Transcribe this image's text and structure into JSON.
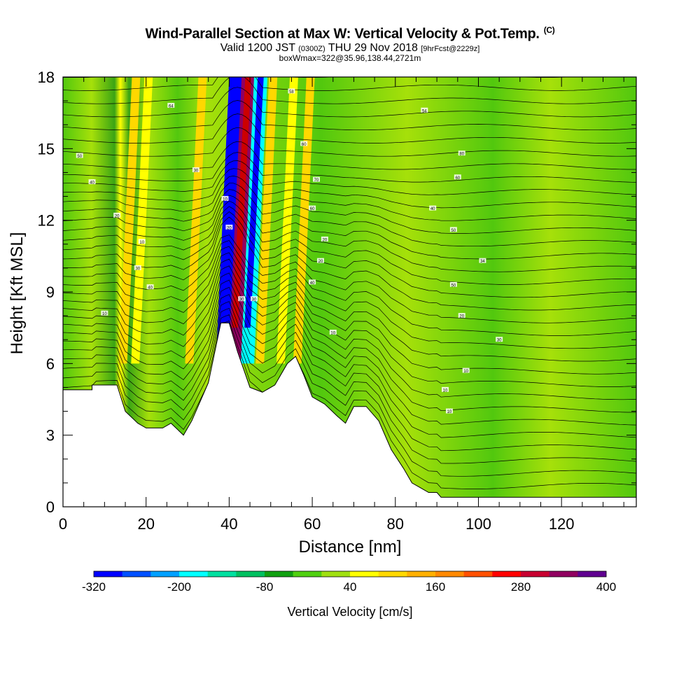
{
  "header": {
    "title": "Wind-Parallel Section at Max W: Vertical Velocity & Pot.Temp.",
    "copyright": "(C)",
    "valid_prefix": "Valid 1200 JST",
    "valid_utc": "(0300Z)",
    "valid_date": "THU 29 Nov 2018",
    "forecast": "[9hrFcst@2229z]",
    "box_info": "boxWmax=322@35.96,138.44,2721m"
  },
  "chart_data": {
    "type": "heatmap",
    "xlabel": "Distance [nm]",
    "ylabel": "Height [Kft MSL]",
    "xlim": [
      0,
      138
    ],
    "ylim": [
      0,
      18
    ],
    "x_ticks": [
      0,
      20,
      40,
      60,
      80,
      100,
      120
    ],
    "y_ticks": [
      0,
      3,
      6,
      9,
      12,
      15,
      18
    ],
    "terrain_kft": [
      [
        0,
        4.9
      ],
      [
        7,
        4.9
      ],
      [
        7,
        5.1
      ],
      [
        13,
        5.1
      ],
      [
        15,
        4.0
      ],
      [
        18,
        3.5
      ],
      [
        20,
        3.3
      ],
      [
        24,
        3.3
      ],
      [
        26,
        3.5
      ],
      [
        29,
        3.0
      ],
      [
        31,
        3.6
      ],
      [
        35,
        5.2
      ],
      [
        38,
        7.7
      ],
      [
        40,
        7.7
      ],
      [
        42,
        6.5
      ],
      [
        45,
        5.0
      ],
      [
        48,
        4.8
      ],
      [
        51,
        5.1
      ],
      [
        54,
        6.0
      ],
      [
        56,
        6.3
      ],
      [
        58,
        5.5
      ],
      [
        60,
        4.6
      ],
      [
        63,
        4.3
      ],
      [
        66,
        3.8
      ],
      [
        68,
        3.5
      ],
      [
        70,
        4.2
      ],
      [
        73,
        4.2
      ],
      [
        76,
        3.6
      ],
      [
        79,
        2.4
      ],
      [
        82,
        1.6
      ],
      [
        84,
        1.0
      ],
      [
        86,
        0.8
      ],
      [
        88,
        0.6
      ],
      [
        90,
        0.6
      ],
      [
        91,
        0.4
      ],
      [
        138,
        0.4
      ]
    ],
    "vertical_velocity_features": [
      {
        "x": 16,
        "w_cms": 60,
        "kind": "updraft"
      },
      {
        "x": 19,
        "w_cms": 40,
        "kind": "updraft"
      },
      {
        "x": 32,
        "w_cms": 60,
        "kind": "updraft"
      },
      {
        "x": 40,
        "w_cms": -320,
        "kind": "downdraft"
      },
      {
        "x": 43,
        "w_cms": 322,
        "kind": "updraft"
      },
      {
        "x": 46,
        "w_cms": -200,
        "kind": "downdraft"
      },
      {
        "x": 49,
        "w_cms": 60,
        "kind": "updraft"
      },
      {
        "x": 54,
        "w_cms": 40,
        "kind": "updraft"
      },
      {
        "x": 58,
        "w_cms": 60,
        "kind": "updraft"
      }
    ],
    "colorbar": {
      "label": "Vertical Velocity [cm/s]",
      "tick_labels": [
        "-320",
        "-200",
        "-80",
        "40",
        "160",
        "280",
        "400"
      ],
      "colors": [
        "#0000ff",
        "#0050ff",
        "#00a0ff",
        "#00ffff",
        "#00e0a0",
        "#00c060",
        "#10a010",
        "#50d010",
        "#a0e010",
        "#ffff00",
        "#ffd800",
        "#ffb000",
        "#ff8800",
        "#ff5000",
        "#ff0000",
        "#c80030",
        "#900060",
        "#600090"
      ]
    },
    "theta_labels": [
      {
        "x": 26,
        "y": 16.8,
        "text": "64"
      },
      {
        "x": 55,
        "y": 17.4,
        "text": "58"
      },
      {
        "x": 87,
        "y": 16.6,
        "text": "54"
      },
      {
        "x": 4,
        "y": 14.7,
        "text": "50"
      },
      {
        "x": 32,
        "y": 14.1,
        "text": "30"
      },
      {
        "x": 58,
        "y": 15.2,
        "text": "60"
      },
      {
        "x": 96,
        "y": 14.8,
        "text": "80"
      },
      {
        "x": 7,
        "y": 13.6,
        "text": "40"
      },
      {
        "x": 61,
        "y": 13.7,
        "text": "70"
      },
      {
        "x": 95,
        "y": 13.8,
        "text": "60"
      },
      {
        "x": 13,
        "y": 12.2,
        "text": "20"
      },
      {
        "x": 39,
        "y": 12.9,
        "text": "10"
      },
      {
        "x": 60,
        "y": 12.5,
        "text": "60"
      },
      {
        "x": 89,
        "y": 12.5,
        "text": "40"
      },
      {
        "x": 19,
        "y": 11.1,
        "text": "10"
      },
      {
        "x": 40,
        "y": 11.7,
        "text": "20"
      },
      {
        "x": 63,
        "y": 11.2,
        "text": "20"
      },
      {
        "x": 94,
        "y": 11.6,
        "text": "50"
      },
      {
        "x": 18,
        "y": 10.0,
        "text": "30"
      },
      {
        "x": 62,
        "y": 10.3,
        "text": "20"
      },
      {
        "x": 101,
        "y": 10.3,
        "text": "34"
      },
      {
        "x": 21,
        "y": 9.2,
        "text": "40"
      },
      {
        "x": 43,
        "y": 8.7,
        "text": "30"
      },
      {
        "x": 46,
        "y": 8.7,
        "text": "30"
      },
      {
        "x": 60,
        "y": 9.4,
        "text": "40"
      },
      {
        "x": 94,
        "y": 9.3,
        "text": "50"
      },
      {
        "x": 10,
        "y": 8.1,
        "text": "10"
      },
      {
        "x": 96,
        "y": 8.0,
        "text": "20"
      },
      {
        "x": 65,
        "y": 7.3,
        "text": "10"
      },
      {
        "x": 105,
        "y": 7.0,
        "text": "30"
      },
      {
        "x": 97,
        "y": 5.7,
        "text": "10"
      },
      {
        "x": 92,
        "y": 4.9,
        "text": "10"
      },
      {
        "x": 93,
        "y": 4.0,
        "text": "10"
      }
    ]
  }
}
